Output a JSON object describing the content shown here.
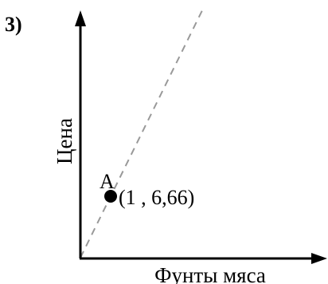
{
  "problem_number": "3)",
  "axes": {
    "y_label": "Цена",
    "x_label": "Фунты мяса"
  },
  "point": {
    "name": "A",
    "coordinates_label": "(1 , 6,66)"
  },
  "colors": {
    "axis": "#000000",
    "dashed_line": "#999999",
    "point": "#000000"
  }
}
